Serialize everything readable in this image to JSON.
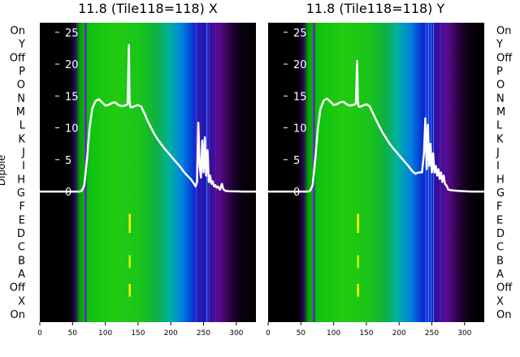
{
  "chart_data": [
    {
      "type": "heatmap",
      "title": "11.8 (Tile118=118) X",
      "ylabel": "Dipole",
      "categories": [
        "On",
        "X",
        "Off",
        "A",
        "B",
        "C",
        "D",
        "E",
        "F",
        "G",
        "H",
        "I",
        "J",
        "K",
        "L",
        "M",
        "N",
        "O",
        "P",
        "Off",
        "Y",
        "On"
      ],
      "x_ticks": [
        "0",
        "50",
        "100",
        "150",
        "200",
        "250",
        "300"
      ],
      "xlim": [
        0,
        330
      ],
      "y_ticks": [
        "0",
        "5",
        "10",
        "15",
        "20",
        "25"
      ],
      "ylim": [
        -20.5,
        26.5
      ],
      "x": [
        0,
        60,
        64,
        68,
        72,
        76,
        80,
        85,
        90,
        95,
        100,
        105,
        110,
        115,
        120,
        125,
        130,
        134,
        135,
        136,
        137,
        138,
        140,
        145,
        150,
        155,
        160,
        165,
        170,
        175,
        180,
        185,
        190,
        195,
        200,
        205,
        210,
        215,
        220,
        225,
        230,
        235,
        238,
        240,
        242,
        244,
        246,
        248,
        250,
        252,
        254,
        256,
        258,
        260,
        262,
        264,
        266,
        268,
        270,
        272,
        275,
        278,
        280,
        282,
        284,
        290,
        300,
        310,
        320,
        330
      ],
      "values": [
        0,
        0,
        0.1,
        1,
        5,
        10,
        13,
        14.2,
        14.5,
        14,
        13.5,
        13.6,
        13.9,
        14,
        13.6,
        13.4,
        13.5,
        13.7,
        18,
        23,
        14.5,
        13.3,
        13.2,
        13.4,
        13.6,
        13.3,
        12.2,
        11,
        10,
        9,
        8.2,
        7.5,
        6.8,
        6.2,
        5.6,
        5,
        4.4,
        3.8,
        3.1,
        2.5,
        2,
        1.3,
        0.8,
        1.5,
        10.8,
        4,
        2.2,
        8,
        3,
        8.5,
        2.5,
        6.5,
        1.5,
        2.5,
        1.2,
        1.6,
        0.8,
        1,
        0.6,
        0.8,
        0.3,
        1.2,
        0.4,
        0.2,
        0.1,
        0.05,
        0.02,
        0,
        0,
        0
      ],
      "series_color": "#ffffff"
    },
    {
      "type": "heatmap",
      "title": "11.8 (Tile118=118) Y",
      "ylabel": "",
      "categories": [
        "On",
        "X",
        "Off",
        "A",
        "B",
        "C",
        "D",
        "E",
        "F",
        "G",
        "H",
        "I",
        "J",
        "K",
        "L",
        "M",
        "N",
        "O",
        "P",
        "Off",
        "Y",
        "On"
      ],
      "x_ticks": [
        "0",
        "50",
        "100",
        "150",
        "200",
        "250",
        "300"
      ],
      "xlim": [
        0,
        330
      ],
      "y_ticks": [
        "0",
        "5",
        "10",
        "15",
        "20",
        "25"
      ],
      "ylim": [
        -20.5,
        26.5
      ],
      "x": [
        0,
        60,
        64,
        68,
        72,
        76,
        80,
        85,
        90,
        95,
        100,
        105,
        110,
        115,
        120,
        125,
        130,
        134,
        135,
        136,
        137,
        138,
        140,
        145,
        150,
        155,
        160,
        165,
        170,
        175,
        180,
        185,
        190,
        195,
        200,
        205,
        210,
        215,
        220,
        225,
        230,
        235,
        238,
        240,
        242,
        244,
        246,
        248,
        250,
        252,
        254,
        256,
        258,
        260,
        262,
        264,
        266,
        268,
        270,
        272,
        275,
        280,
        290,
        300,
        310,
        320,
        330
      ],
      "values": [
        0,
        0,
        0.1,
        1,
        5,
        10,
        13,
        14.3,
        14.6,
        14.1,
        13.6,
        13.7,
        14,
        14.1,
        13.7,
        13.5,
        13.6,
        13.8,
        17,
        20.5,
        14.3,
        13.4,
        13.3,
        13.5,
        13.7,
        13.4,
        12.3,
        11.2,
        10.2,
        9.2,
        8.4,
        7.6,
        6.9,
        6.3,
        5.7,
        5.1,
        4.5,
        3.9,
        3.2,
        2.8,
        3,
        3,
        6,
        11.5,
        3.5,
        10.5,
        4,
        7.5,
        3,
        6,
        3,
        4,
        2.5,
        3.5,
        2,
        3,
        1.5,
        2.5,
        1.2,
        1,
        0.3,
        0.2,
        0.1,
        0.05,
        0,
        0,
        0
      ],
      "series_color": "#ffffff"
    }
  ]
}
